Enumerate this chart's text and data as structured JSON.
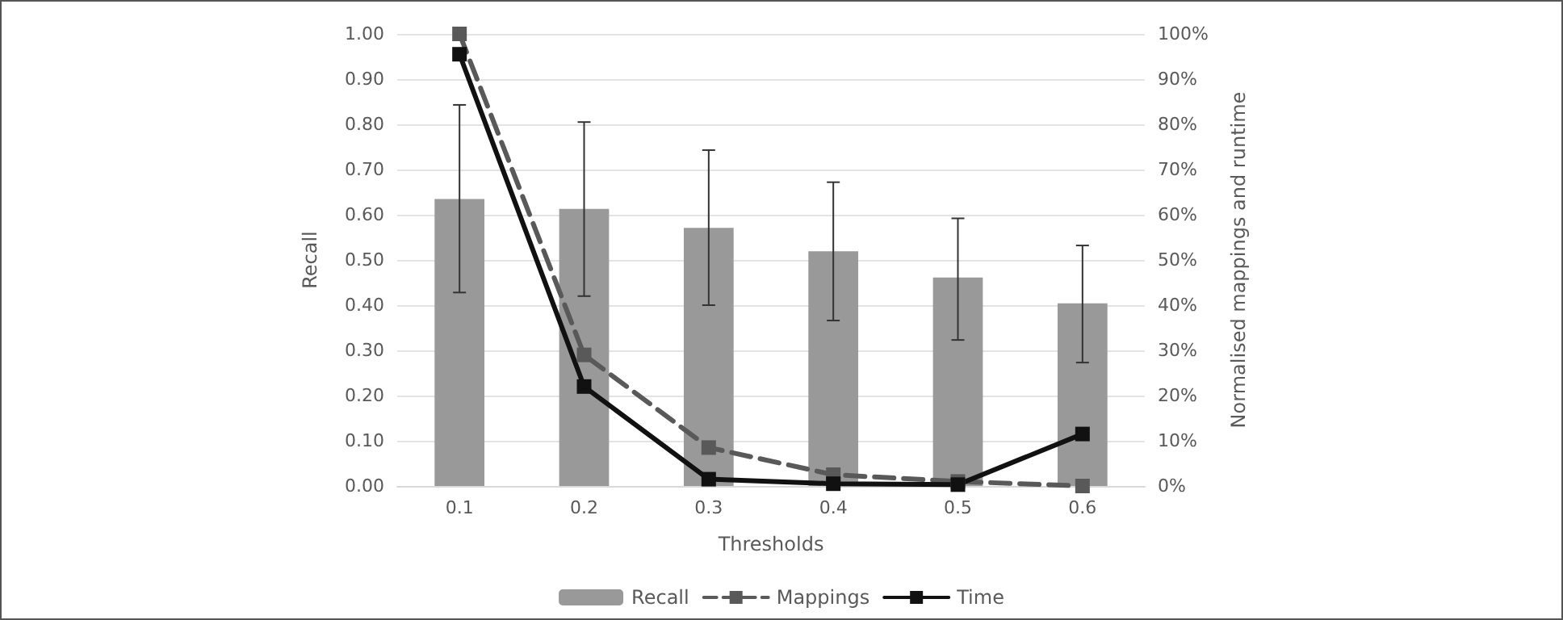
{
  "chart_data": {
    "type": "bar",
    "xlabel": "Thresholds",
    "ylabel": "Recall",
    "y2label": "Normalised mappings and runtime",
    "categories": [
      "0.1",
      "0.2",
      "0.3",
      "0.4",
      "0.5",
      "0.6"
    ],
    "series": [
      {
        "name": "Recall",
        "color": "#999999",
        "values": [
          0.635,
          0.613,
          0.571,
          0.519,
          0.461,
          0.404
        ],
        "errors": [
          [
            0.428,
            0.843
          ],
          [
            0.42,
            0.805
          ],
          [
            0.4,
            0.743
          ],
          [
            0.366,
            0.672
          ],
          [
            0.323,
            0.592
          ],
          [
            0.273,
            0.532
          ]
        ]
      },
      {
        "name": "Mappings",
        "type": "line",
        "axis": "y2",
        "color": "#595959",
        "line_style": "dashed",
        "marker": "square",
        "values": [
          100,
          29,
          8.5,
          2.5,
          1,
          0
        ]
      },
      {
        "name": "Time",
        "type": "line",
        "axis": "y2",
        "color": "#111111",
        "line_style": "solid",
        "marker": "square",
        "values": [
          95.5,
          22,
          1.5,
          0.5,
          0.3,
          11.5
        ]
      }
    ],
    "ylim": [
      0,
      1
    ],
    "yticks": [
      {
        "value": 0,
        "label": "0.00"
      },
      {
        "value": 0.1,
        "label": "0.10"
      },
      {
        "value": 0.2,
        "label": "0.20"
      },
      {
        "value": 0.3,
        "label": "0.30"
      },
      {
        "value": 0.4,
        "label": "0.40"
      },
      {
        "value": 0.5,
        "label": "0.50"
      },
      {
        "value": 0.6,
        "label": "0.60"
      },
      {
        "value": 0.7,
        "label": "0.70"
      },
      {
        "value": 0.8,
        "label": "0.80"
      },
      {
        "value": 0.9,
        "label": "0.90"
      },
      {
        "value": 1,
        "label": "1.00"
      }
    ],
    "y2lim": [
      0,
      100
    ],
    "y2ticks": [
      {
        "value": 0,
        "label": "0%"
      },
      {
        "value": 10,
        "label": "10%"
      },
      {
        "value": 20,
        "label": "20%"
      },
      {
        "value": 30,
        "label": "30%"
      },
      {
        "value": 40,
        "label": "40%"
      },
      {
        "value": 50,
        "label": "50%"
      },
      {
        "value": 60,
        "label": "60%"
      },
      {
        "value": 70,
        "label": "70%"
      },
      {
        "value": 80,
        "label": "80%"
      },
      {
        "value": 90,
        "label": "90%"
      },
      {
        "value": 100,
        "label": "100%"
      }
    ],
    "grid": "y",
    "legend": "bottom"
  }
}
